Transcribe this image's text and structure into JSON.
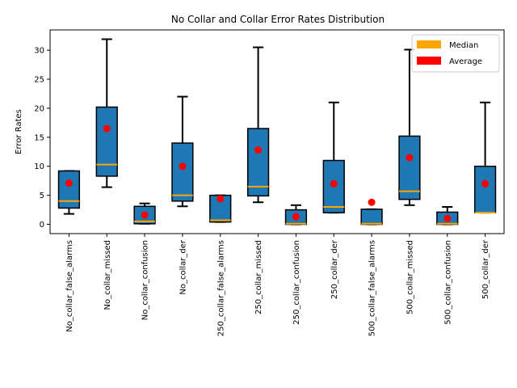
{
  "chart_data": {
    "type": "box",
    "title": "No Collar and Collar Error Rates Distribution",
    "xlabel": "",
    "ylabel": "Error Rates",
    "ylim": [
      -1.6,
      33.5
    ],
    "yticks": [
      0,
      5,
      10,
      15,
      20,
      25,
      30
    ],
    "grid": false,
    "legend_position": "top-right",
    "colors": {
      "box_fill": "#1f77b4",
      "median": "#ffa500",
      "average": "#ff0000",
      "whisker": "#000000"
    },
    "legend": [
      {
        "label": "Median",
        "color": "#ffa500"
      },
      {
        "label": "Average",
        "color": "#ff0000"
      }
    ],
    "categories": [
      "No_collar_false_alarms",
      "No_collar_missed",
      "No_collar_confusion",
      "No_collar_der",
      "250_collar_false_alarms",
      "250_collar_missed",
      "250_collar_confusion",
      "250_collar_der",
      "500_collar_false_alarms",
      "500_collar_missed",
      "500_collar_confusion",
      "500_collar_der"
    ],
    "boxes": [
      {
        "min": 1.8,
        "q1": 2.8,
        "median": 4.0,
        "q3": 9.2,
        "max": 9.2,
        "mean": 7.1
      },
      {
        "min": 6.4,
        "q1": 8.3,
        "median": 10.3,
        "q3": 20.2,
        "max": 31.9,
        "mean": 16.5
      },
      {
        "min": 0.1,
        "q1": 0.1,
        "median": 0.5,
        "q3": 3.1,
        "max": 3.6,
        "mean": 1.6
      },
      {
        "min": 3.1,
        "q1": 4.0,
        "median": 5.0,
        "q3": 14.0,
        "max": 22.0,
        "mean": 10.0
      },
      {
        "min": 0.4,
        "q1": 0.4,
        "median": 0.7,
        "q3": 5.0,
        "max": 5.0,
        "mean": 4.4
      },
      {
        "min": 3.8,
        "q1": 4.9,
        "median": 6.5,
        "q3": 16.5,
        "max": 30.5,
        "mean": 12.8
      },
      {
        "min": 0.0,
        "q1": 0.0,
        "median": 0.1,
        "q3": 2.5,
        "max": 3.3,
        "mean": 1.3
      },
      {
        "min": 2.0,
        "q1": 2.0,
        "median": 3.0,
        "q3": 11.0,
        "max": 21.0,
        "mean": 7.0
      },
      {
        "min": 0.0,
        "q1": 0.0,
        "median": 0.1,
        "q3": 2.6,
        "max": 2.6,
        "mean": 3.8
      },
      {
        "min": 3.3,
        "q1": 4.3,
        "median": 5.7,
        "q3": 15.2,
        "max": 30.1,
        "mean": 11.5
      },
      {
        "min": 0.0,
        "q1": 0.0,
        "median": 0.1,
        "q3": 2.1,
        "max": 3.0,
        "mean": 1.0
      },
      {
        "min": 2.0,
        "q1": 2.0,
        "median": 2.0,
        "q3": 10.0,
        "max": 21.0,
        "mean": 7.0
      }
    ]
  }
}
